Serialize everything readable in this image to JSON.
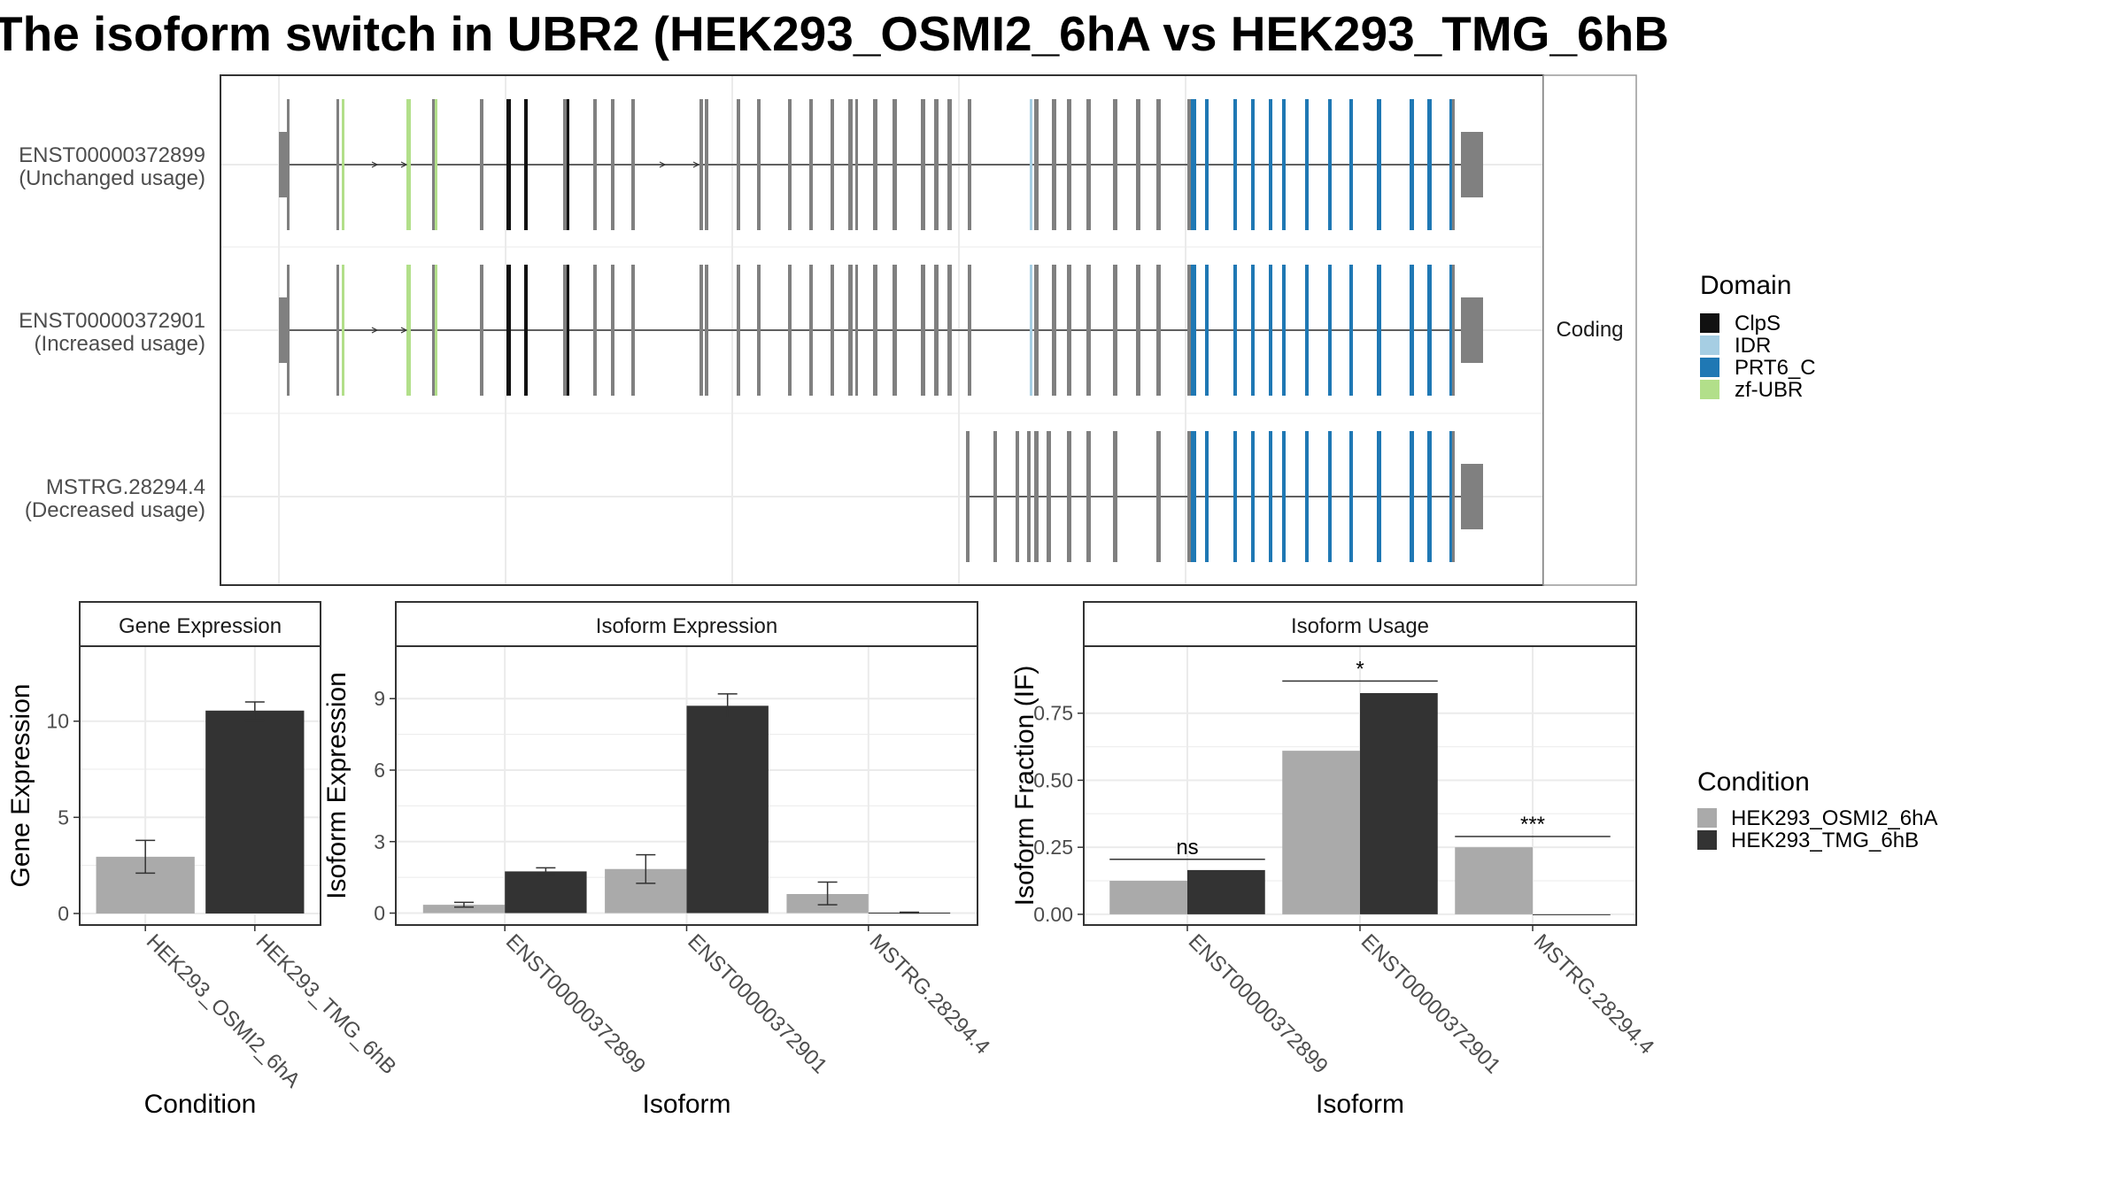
{
  "title": "The isoform switch in UBR2 (HEK293_OSMI2_6hA vs HEK293_TMG_6hB",
  "colors": {
    "intron_exon": "#808080",
    "domains": {
      "ClpS": "#111111",
      "IDR": "#a6cee3",
      "PRT6_C": "#1f78b4",
      "zf-UBR": "#b2df8a"
    },
    "condition_a": "#aaaaaa",
    "condition_b": "#333333"
  },
  "structure": {
    "strip_label": "Coding",
    "isoforms": [
      {
        "line1": "ENST00000372899",
        "line2": "(Unchanged usage)"
      },
      {
        "line1": "ENST00000372901",
        "line2": "(Increased usage)"
      },
      {
        "line1": "MSTRG.28294.4",
        "line2": "(Decreased usage)"
      }
    ]
  },
  "legend_domain": {
    "title": "Domain",
    "items": [
      {
        "label": "ClpS",
        "color": "#111111"
      },
      {
        "label": "IDR",
        "color": "#a6cee3"
      },
      {
        "label": "PRT6_C",
        "color": "#1f78b4"
      },
      {
        "label": "zf-UBR",
        "color": "#b2df8a"
      }
    ]
  },
  "legend_condition": {
    "title": "Condition",
    "items": [
      {
        "label": "HEK293_OSMI2_6hA",
        "color": "#aaaaaa"
      },
      {
        "label": "HEK293_TMG_6hB",
        "color": "#333333"
      }
    ]
  },
  "chart_data": [
    {
      "type": "bar",
      "title": "Gene Expression",
      "xlabel": "Condition",
      "ylabel": "Gene Expression",
      "categories": [
        "HEK293_OSMI2_6hA",
        "HEK293_TMG_6hB"
      ],
      "values": [
        2.95,
        10.55
      ],
      "errors": [
        [
          2.1,
          3.8
        ],
        [
          10.05,
          11.0
        ]
      ],
      "ylim": [
        -0.6,
        13.9
      ],
      "yticks": [
        0,
        5,
        10
      ],
      "ytick_labels": [
        "0",
        "5",
        "10"
      ],
      "bar_colors": [
        "#aaaaaa",
        "#333333"
      ]
    },
    {
      "type": "bar",
      "title": "Isoform Expression",
      "xlabel": "Isoform",
      "ylabel": "Isoform Expression",
      "categories": [
        "ENST00000372899",
        "ENST00000372901",
        "MSTRG.28294.4"
      ],
      "yticks": [
        0,
        3,
        6,
        9
      ],
      "ytick_labels": [
        "0",
        "3",
        "6",
        "9"
      ],
      "ylim": [
        -0.5,
        11.2
      ],
      "series": [
        {
          "name": "HEK293_OSMI2_6hA",
          "values": [
            0.35,
            1.85,
            0.8
          ],
          "errors": [
            [
              0.25,
              0.45
            ],
            [
              1.25,
              2.45
            ],
            [
              0.35,
              1.3
            ]
          ]
        },
        {
          "name": "HEK293_TMG_6hB",
          "values": [
            1.75,
            8.7,
            0.02
          ],
          "errors": [
            [
              1.6,
              1.9
            ],
            [
              8.2,
              9.2
            ],
            [
              0.0,
              0.04
            ]
          ]
        }
      ]
    },
    {
      "type": "bar",
      "title": "Isoform Usage",
      "xlabel": "Isoform",
      "ylabel": "Isoform Fraction (IF)",
      "categories": [
        "ENST00000372899",
        "ENST00000372901",
        "MSTRG.28294.4"
      ],
      "yticks": [
        0,
        0.25,
        0.5,
        0.75
      ],
      "ytick_labels": [
        "0.00",
        "0.25",
        "0.50",
        "0.75"
      ],
      "ylim": [
        -0.04,
        1.0
      ],
      "series": [
        {
          "name": "HEK293_OSMI2_6hA",
          "values": [
            0.125,
            0.61,
            0.25
          ]
        },
        {
          "name": "HEK293_TMG_6hB",
          "values": [
            0.165,
            0.825,
            0.0
          ]
        }
      ],
      "significance": [
        {
          "category_index": 0,
          "label": "ns",
          "y": 0.205
        },
        {
          "category_index": 1,
          "label": "*",
          "y": 0.87
        },
        {
          "category_index": 2,
          "label": "***",
          "y": 0.29
        }
      ]
    }
  ]
}
